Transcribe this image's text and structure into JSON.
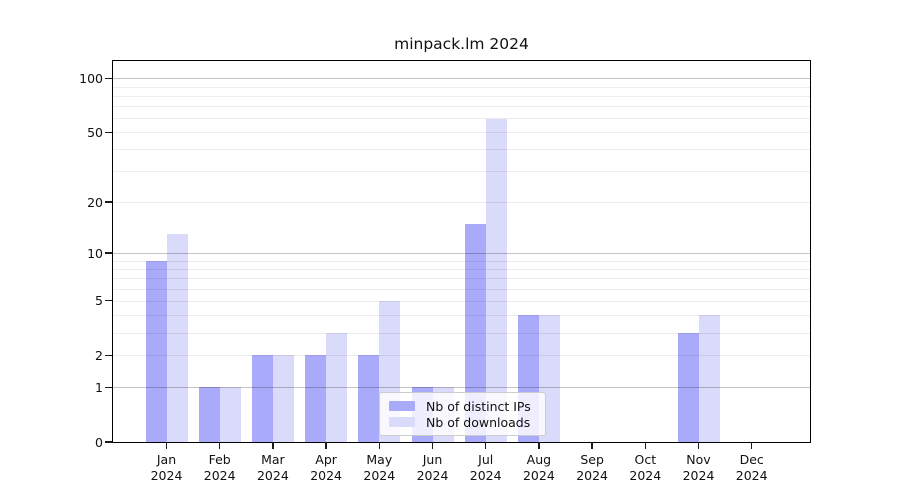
{
  "chart_data": {
    "type": "bar",
    "title": "minpack.lm 2024",
    "categories": [
      "Jan",
      "Feb",
      "Mar",
      "Apr",
      "May",
      "Jun",
      "Jul",
      "Aug",
      "Sep",
      "Oct",
      "Nov",
      "Dec"
    ],
    "year_label": "2024",
    "series": [
      {
        "name": "Nb of distinct IPs",
        "color": "#aaaafa",
        "values": [
          9,
          1,
          2,
          2,
          2,
          1,
          15,
          4,
          0,
          0,
          3,
          0
        ]
      },
      {
        "name": "Nb of downloads",
        "color": "#dadafa",
        "values": [
          13,
          1,
          2,
          3,
          5,
          1,
          59,
          4,
          0,
          0,
          4,
          0
        ]
      }
    ],
    "yscale": "log1p",
    "ylim": [
      0,
      128
    ],
    "yticks": [
      0,
      1,
      2,
      5,
      10,
      20,
      50,
      100
    ],
    "major_gridlines": [
      1,
      10,
      100
    ],
    "minor_gridlines": [
      2,
      3,
      4,
      5,
      6,
      7,
      8,
      9,
      20,
      30,
      40,
      50,
      60,
      70,
      80,
      90
    ],
    "grid": true,
    "legend_position": "lower center-left inside plot",
    "major_grid_color": "#c4c4c4",
    "minor_grid_color": "#ececec",
    "spine_color": "#000000"
  }
}
